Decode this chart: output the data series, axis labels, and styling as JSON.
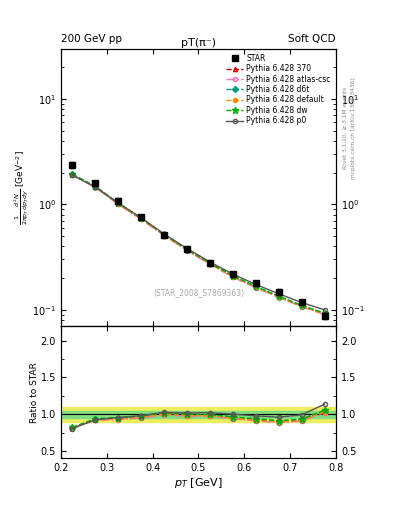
{
  "title": "pT(π⁻)",
  "top_left_label": "200 GeV pp",
  "top_right_label": "Soft QCD",
  "right_label_top": "Rivet 3.1.10, ≥ 3.1M events",
  "right_label_bot": "mcplots.cern.ch [arXiv:1306.3436]",
  "watermark": "(STAR_2008_S7869363)",
  "ylabel_main": "$\\frac{1}{2\\pi p_T}\\frac{d^2N}{dp_T dy}$ [GeV$^{-2}$]",
  "ylabel_ratio": "Ratio to STAR",
  "xlabel": "$p_T$ [GeV]",
  "xlim": [
    0.2,
    0.8
  ],
  "ylim_main": [
    0.07,
    30
  ],
  "ylim_ratio": [
    0.4,
    2.2
  ],
  "pt": [
    0.225,
    0.275,
    0.325,
    0.375,
    0.425,
    0.475,
    0.525,
    0.575,
    0.625,
    0.675,
    0.725,
    0.775
  ],
  "star_data": [
    2.35,
    1.58,
    1.08,
    0.76,
    0.51,
    0.375,
    0.278,
    0.218,
    0.178,
    0.148,
    0.118,
    0.088
  ],
  "star_err": [
    0.15,
    0.09,
    0.06,
    0.04,
    0.028,
    0.02,
    0.015,
    0.012,
    0.01,
    0.008,
    0.007,
    0.006
  ],
  "py370": [
    1.92,
    1.47,
    1.02,
    0.735,
    0.515,
    0.372,
    0.275,
    0.208,
    0.165,
    0.133,
    0.109,
    0.092
  ],
  "py_atlas": [
    1.9,
    1.45,
    1.0,
    0.72,
    0.505,
    0.365,
    0.27,
    0.204,
    0.162,
    0.131,
    0.107,
    0.09
  ],
  "py_d6t": [
    1.92,
    1.47,
    1.02,
    0.735,
    0.515,
    0.372,
    0.275,
    0.208,
    0.165,
    0.133,
    0.109,
    0.092
  ],
  "py_def": [
    1.91,
    1.46,
    1.01,
    0.728,
    0.51,
    0.368,
    0.272,
    0.206,
    0.164,
    0.132,
    0.108,
    0.091
  ],
  "py_dw": [
    1.93,
    1.48,
    1.03,
    0.742,
    0.52,
    0.375,
    0.277,
    0.21,
    0.167,
    0.135,
    0.11,
    0.093
  ],
  "py_p0": [
    1.89,
    1.46,
    1.03,
    0.745,
    0.523,
    0.382,
    0.284,
    0.218,
    0.174,
    0.142,
    0.117,
    0.1
  ],
  "color_370": "#cc0000",
  "color_atlas": "#ff69b4",
  "color_d6t": "#009980",
  "color_def": "#ff8c00",
  "color_dw": "#00aa00",
  "color_p0": "#555555",
  "band_green": "#80dd80",
  "band_yellow": "#eeee60"
}
